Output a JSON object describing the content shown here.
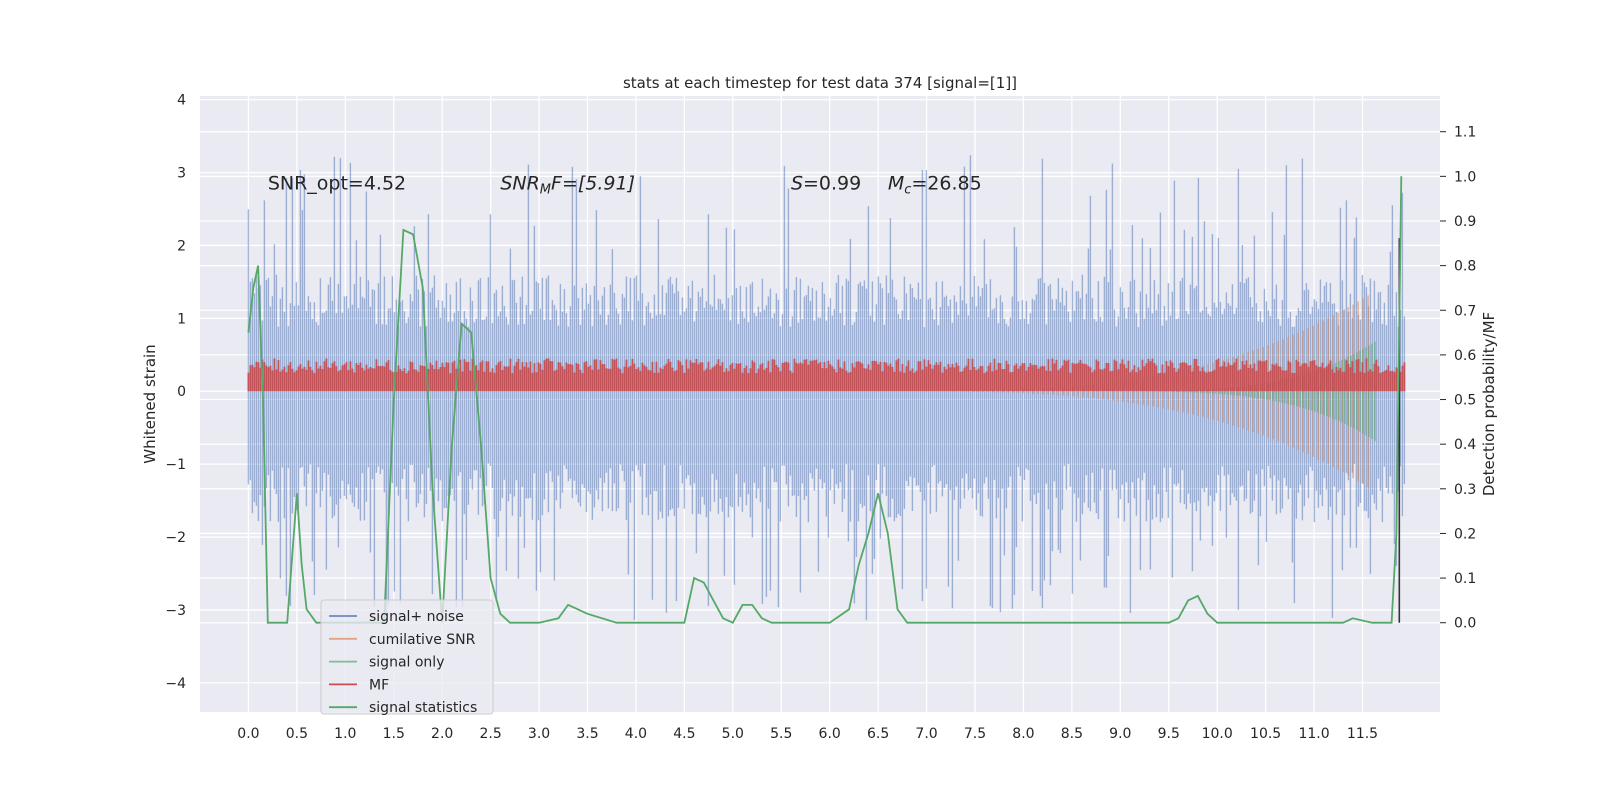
{
  "chart_data": {
    "type": "line",
    "title": "stats at each timestep for test data 374 [signal=[1]]",
    "xlabel": "",
    "ylabel": "Whitened strain",
    "ylabel_right": "Detection probability/MF",
    "xlim": [
      -0.5,
      12.3
    ],
    "ylim": [
      -4.4,
      4.05
    ],
    "ylim_right": [
      -0.2,
      1.18
    ],
    "x_ticks": [
      "0.0",
      "0.5",
      "1.0",
      "1.5",
      "2.0",
      "2.5",
      "3.0",
      "3.5",
      "4.0",
      "4.5",
      "5.0",
      "5.5",
      "6.0",
      "6.5",
      "7.0",
      "7.5",
      "8.0",
      "8.5",
      "9.0",
      "9.5",
      "10.0",
      "10.5",
      "11.0",
      "11.5"
    ],
    "y_ticks": [
      "4",
      "3",
      "2",
      "1",
      "0",
      "−1",
      "−2",
      "−3",
      "−4"
    ],
    "y_ticks_right": [
      "1.1",
      "1.0",
      "0.9",
      "0.8",
      "0.7",
      "0.6",
      "0.5",
      "0.4",
      "0.3",
      "0.2",
      "0.1",
      "0.0"
    ],
    "annotations": [
      {
        "text": "SNR_opt=4.52",
        "x": 0.2,
        "y": 2.85
      },
      {
        "text_main": "SNR",
        "text_sub": "M",
        "text_tail": "F=[5.91]",
        "x": 2.6,
        "y": 2.85
      },
      {
        "text_main": "S",
        "text_tail": "=0.99",
        "x": 5.6,
        "y": 2.85
      },
      {
        "text_main": "M",
        "text_sub": "c",
        "text_tail": "=26.85",
        "x": 6.6,
        "y": 2.85
      }
    ],
    "grid": true,
    "legend_position": "lower-left",
    "series": [
      {
        "name": "signal+ noise",
        "color": "#4c72b0",
        "axis": "left",
        "x_range": [
          0.0,
          11.95
        ],
        "envelope": {
          "upper_typical": 1.6,
          "upper_peak": 3.65,
          "lower_typical": -1.8,
          "lower_peak": -3.75
        }
      },
      {
        "name": "cumilative SNR",
        "color": "#dd8452",
        "axis": "left",
        "x_range": [
          6.5,
          11.6
        ],
        "envelope_max_at_end": 1.35
      },
      {
        "name": "signal only",
        "color": "#55a868",
        "axis": "left",
        "x_range": [
          8.5,
          11.65
        ],
        "envelope_max_at_end": 0.7
      },
      {
        "name": "MF",
        "color": "#c44e52",
        "axis": "left",
        "x_range": [
          0.0,
          11.95
        ],
        "band": [
          0.0,
          0.45
        ]
      },
      {
        "name": "signal statistics",
        "color": "#55a868",
        "axis": "right",
        "x": [
          0.0,
          0.05,
          0.1,
          0.15,
          0.2,
          0.3,
          0.4,
          0.5,
          0.55,
          0.6,
          0.7,
          0.8,
          1.0,
          1.2,
          1.4,
          1.5,
          1.6,
          1.7,
          1.8,
          1.9,
          2.0,
          2.1,
          2.2,
          2.3,
          2.4,
          2.5,
          2.6,
          2.7,
          2.8,
          3.0,
          3.2,
          3.3,
          3.4,
          3.5,
          3.8,
          4.0,
          4.5,
          4.6,
          4.7,
          4.8,
          4.9,
          5.0,
          5.1,
          5.2,
          5.3,
          5.4,
          5.6,
          6.0,
          6.2,
          6.3,
          6.4,
          6.5,
          6.6,
          6.7,
          6.8,
          7.0,
          7.5,
          8.0,
          8.2,
          8.5,
          9.5,
          9.6,
          9.7,
          9.8,
          9.9,
          10.0,
          10.5,
          11.0,
          11.3,
          11.4,
          11.6,
          11.8,
          11.85,
          11.9
        ],
        "y": [
          0.65,
          0.75,
          0.8,
          0.5,
          0.0,
          0.0,
          0.0,
          0.29,
          0.13,
          0.03,
          0.0,
          0.0,
          0.0,
          0.0,
          0.0,
          0.5,
          0.88,
          0.87,
          0.75,
          0.3,
          0.0,
          0.4,
          0.67,
          0.65,
          0.4,
          0.1,
          0.02,
          0.0,
          0.0,
          0.0,
          0.01,
          0.04,
          0.03,
          0.02,
          0.0,
          0.0,
          0.0,
          0.1,
          0.09,
          0.05,
          0.01,
          0.0,
          0.04,
          0.04,
          0.01,
          0.0,
          0.0,
          0.0,
          0.03,
          0.13,
          0.2,
          0.29,
          0.2,
          0.03,
          0.0,
          0.0,
          0.0,
          0.0,
          0.0,
          0.0,
          0.0,
          0.01,
          0.05,
          0.06,
          0.02,
          0.0,
          0.0,
          0.0,
          0.0,
          0.01,
          0.0,
          0.0,
          0.2,
          1.0
        ]
      }
    ]
  }
}
